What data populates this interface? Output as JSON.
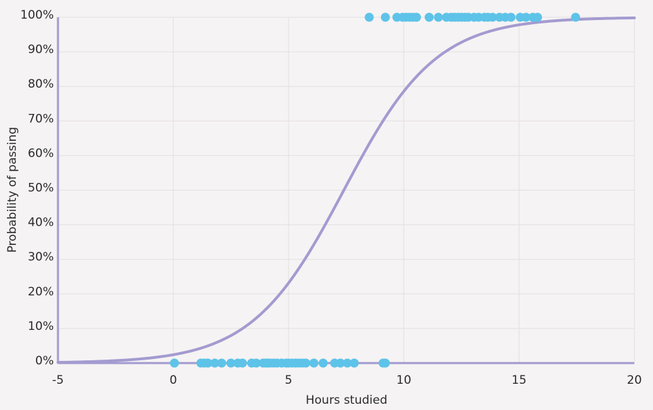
{
  "chart_data": {
    "type": "scatter",
    "title": "",
    "xlabel": "Hours studied",
    "ylabel": "Probability of passing",
    "xlim": [
      -5,
      20
    ],
    "ylim": [
      0,
      1
    ],
    "grid": true,
    "xticks": [
      -5,
      0,
      5,
      10,
      15,
      20
    ],
    "xtick_labels": [
      "-5",
      "0",
      "5",
      "10",
      "15",
      "20"
    ],
    "yticks": [
      0,
      0.1,
      0.2,
      0.3,
      0.4,
      0.5,
      0.6,
      0.7,
      0.8,
      0.9,
      1.0
    ],
    "ytick_labels": [
      "0%",
      "10%",
      "20%",
      "30%",
      "40%",
      "50%",
      "60%",
      "70%",
      "80%",
      "90%",
      "100%"
    ],
    "curve": {
      "type": "logistic",
      "midpoint": 7.4,
      "slope": 0.5,
      "color": "#a39bd0"
    },
    "points_color": "#5ec3e8",
    "points_fail_y": 0,
    "points_pass_y": 1,
    "points_fail_x": [
      0.05,
      1.2,
      1.35,
      1.5,
      1.8,
      2.1,
      2.5,
      2.8,
      3.0,
      3.4,
      3.6,
      3.9,
      4.0,
      4.1,
      4.2,
      4.35,
      4.5,
      4.7,
      4.9,
      5.0,
      5.15,
      5.3,
      5.45,
      5.6,
      5.75,
      6.1,
      6.5,
      7.0,
      7.25,
      7.55,
      7.85,
      9.1,
      9.2
    ],
    "points_pass_x": [
      8.5,
      9.2,
      9.7,
      9.95,
      10.1,
      10.25,
      10.4,
      10.55,
      11.1,
      11.5,
      11.85,
      12.05,
      12.2,
      12.35,
      12.5,
      12.65,
      12.8,
      13.05,
      13.25,
      13.5,
      13.65,
      13.85,
      14.15,
      14.4,
      14.65,
      15.05,
      15.3,
      15.6,
      15.8,
      17.45
    ]
  }
}
